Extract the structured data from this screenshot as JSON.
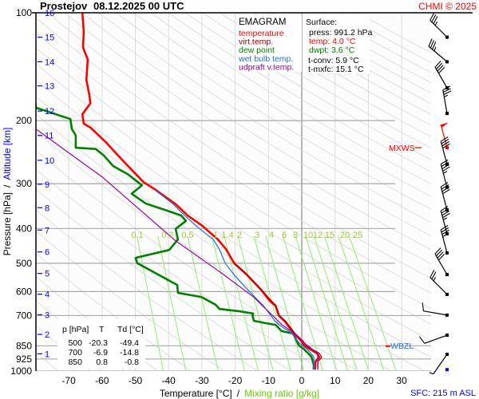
{
  "header": {
    "station": "Prostejov",
    "datetime": "08.12.2025 00 UTC",
    "copyright": "CHMI © 2025"
  },
  "legend": {
    "title": "EMAGRAM",
    "items": [
      {
        "label": "temperature",
        "color": "#ff0000"
      },
      {
        "label": "virt.temp.",
        "color": "#a00000"
      },
      {
        "label": "dew point",
        "color": "#008000"
      },
      {
        "label": "wet bulb temp.",
        "color": "#1e6ee6"
      },
      {
        "label": "udpraft v.temp.",
        "color": "#a000a0"
      }
    ]
  },
  "surface": {
    "title": "Surface:",
    "press": "press: 991.2 hPa",
    "temp": "temp: 4.0 °C",
    "dwpt": "dwpt: 3.6 °C",
    "tconv": "t-conv: 5.9 °C",
    "tmxfc": "t-mxfc: 15.1 °C"
  },
  "table": {
    "headers": [
      "p [hPa]",
      "T",
      "Td [°C]"
    ],
    "rows": [
      [
        "500",
        "-20.3",
        "-49.4"
      ],
      [
        "700",
        "-6.9",
        "-14.8"
      ],
      [
        "850",
        "0.8",
        "-0.8"
      ]
    ]
  },
  "markers": {
    "mxws": {
      "label": "MXWS",
      "pressure": 238
    },
    "wbzl": {
      "label": "WBZL",
      "pressure": 852
    }
  },
  "footer": {
    "sfc": "SFC: 215 m ASL"
  },
  "chart_data": {
    "type": "line",
    "title": "EMAGRAM",
    "xlabel": "Temperature [°C]",
    "xlabel_sep": "/",
    "xlabel2": "Mixing ratio [g/kg]",
    "ylabel": "Pressure [hPa]",
    "ylabel_sep": "/",
    "ylabel2": "Altitude [km]",
    "xlim": [
      -80,
      40
    ],
    "ylim": [
      1000,
      100
    ],
    "yscale": "log",
    "x_ticks": [
      "-70",
      "-60",
      "-50",
      "-40",
      "-30",
      "-20",
      "-10",
      "0",
      "10",
      "20",
      "30"
    ],
    "pressure_ticks": [
      "100",
      "200",
      "300",
      "400",
      "500",
      "600",
      "700",
      "850",
      "925",
      "1000"
    ],
    "altitude_ticks": [
      {
        "km": "16",
        "p": 100
      },
      {
        "km": "15",
        "p": 117
      },
      {
        "km": "14",
        "p": 137
      },
      {
        "km": "13",
        "p": 160
      },
      {
        "km": "12",
        "p": 188
      },
      {
        "km": "11",
        "p": 220
      },
      {
        "km": "10",
        "p": 258
      },
      {
        "km": "9",
        "p": 301
      },
      {
        "km": "8",
        "p": 350
      },
      {
        "km": "7",
        "p": 404
      },
      {
        "km": "6",
        "p": 465
      },
      {
        "km": "5",
        "p": 534
      },
      {
        "km": "4",
        "p": 610
      },
      {
        "km": "3",
        "p": 696
      },
      {
        "km": "2",
        "p": 790
      },
      {
        "km": "1",
        "p": 895
      }
    ],
    "mixing_ratio_labels": [
      "0.1",
      "0.2",
      "0.5",
      "1",
      "1.4",
      "2",
      "3",
      "4",
      "6",
      "8",
      "10",
      "12",
      "15",
      "20",
      "25"
    ],
    "grid": true,
    "series": [
      {
        "name": "temperature",
        "color": "#ff0000",
        "points": [
          [
            100,
            -65.9
          ],
          [
            113,
            -65.5
          ],
          [
            125,
            -65.7
          ],
          [
            135,
            -64.3
          ],
          [
            154,
            -64.7
          ],
          [
            170,
            -63.8
          ],
          [
            179,
            -63.5
          ],
          [
            192,
            -65.9
          ],
          [
            204,
            -65.5
          ],
          [
            209,
            -63.5
          ],
          [
            230,
            -58.8
          ],
          [
            257,
            -54.0
          ],
          [
            297,
            -47.5
          ],
          [
            312,
            -43.9
          ],
          [
            342,
            -37.9
          ],
          [
            368,
            -34.3
          ],
          [
            391,
            -30.2
          ],
          [
            429,
            -25.2
          ],
          [
            456,
            -22.8
          ],
          [
            500,
            -20.3
          ],
          [
            535,
            -16.8
          ],
          [
            593,
            -12.2
          ],
          [
            637,
            -9.6
          ],
          [
            657,
            -7.9
          ],
          [
            700,
            -6.9
          ],
          [
            728,
            -5.0
          ],
          [
            786,
            -2.4
          ],
          [
            823,
            -0.2
          ],
          [
            850,
            0.8
          ],
          [
            893,
            4.6
          ],
          [
            916,
            5.3
          ],
          [
            940,
            4.1
          ],
          [
            991,
            4.0
          ]
        ]
      },
      {
        "name": "virt.temp.",
        "color": "#a00000",
        "points": [
          [
            500,
            -20.3
          ],
          [
            535,
            -16.7
          ],
          [
            593,
            -12.1
          ],
          [
            657,
            -7.8
          ],
          [
            700,
            -6.7
          ],
          [
            728,
            -4.7
          ],
          [
            786,
            -2.0
          ],
          [
            823,
            0.3
          ],
          [
            850,
            1.4
          ],
          [
            893,
            5.3
          ],
          [
            916,
            6.0
          ],
          [
            940,
            4.9
          ],
          [
            991,
            4.8
          ]
        ]
      },
      {
        "name": "dew point",
        "color": "#008000",
        "points": [
          [
            179,
            -79.9
          ],
          [
            184,
            -79.9
          ],
          [
            198,
            -69.5
          ],
          [
            211,
            -69.1
          ],
          [
            220,
            -67.9
          ],
          [
            238,
            -67.9
          ],
          [
            240,
            -61.9
          ],
          [
            250,
            -59.5
          ],
          [
            268,
            -56.6
          ],
          [
            282,
            -52.3
          ],
          [
            303,
            -48.0
          ],
          [
            320,
            -51.1
          ],
          [
            341,
            -46.8
          ],
          [
            355,
            -41.0
          ],
          [
            368,
            -36.2
          ],
          [
            381,
            -34.8
          ],
          [
            401,
            -37.9
          ],
          [
            429,
            -37.2
          ],
          [
            459,
            -39.8
          ],
          [
            483,
            -49.9
          ],
          [
            500,
            -49.4
          ],
          [
            575,
            -37.4
          ],
          [
            605,
            -37.2
          ],
          [
            621,
            -30.2
          ],
          [
            653,
            -25.9
          ],
          [
            671,
            -24.7
          ],
          [
            681,
            -18.7
          ],
          [
            691,
            -14.6
          ],
          [
            700,
            -14.8
          ],
          [
            724,
            -14.4
          ],
          [
            735,
            -10.8
          ],
          [
            743,
            -7.9
          ],
          [
            774,
            -6.0
          ],
          [
            786,
            -2.6
          ],
          [
            836,
            -1.2
          ],
          [
            850,
            -0.8
          ],
          [
            866,
            0.5
          ],
          [
            912,
            2.9
          ],
          [
            960,
            3.6
          ],
          [
            991,
            3.6
          ]
        ]
      },
      {
        "name": "wet bulb temp.",
        "color": "#1e6ee6",
        "points": [
          [
            312,
            -44.2
          ],
          [
            342,
            -38.6
          ],
          [
            368,
            -35.2
          ],
          [
            400,
            -30.8
          ],
          [
            429,
            -26.6
          ],
          [
            458,
            -24.7
          ],
          [
            500,
            -23.0
          ],
          [
            535,
            -20.6
          ],
          [
            583,
            -17.0
          ],
          [
            615,
            -14.6
          ],
          [
            657,
            -11.5
          ],
          [
            728,
            -7.9
          ],
          [
            752,
            -6.0
          ],
          [
            783,
            -3.1
          ],
          [
            836,
            -0.7
          ],
          [
            870,
            1.7
          ],
          [
            912,
            3.6
          ],
          [
            960,
            3.6
          ],
          [
            991,
            3.8
          ]
        ]
      },
      {
        "name": "udpraft v.temp.",
        "color": "#a000a0",
        "points": [
          [
            212,
            -79.6
          ],
          [
            287,
            -60.0
          ],
          [
            433,
            -37.9
          ],
          [
            532,
            -24.2
          ],
          [
            620,
            -14.6
          ],
          [
            688,
            -9.6
          ],
          [
            742,
            -6.0
          ],
          [
            786,
            -2.2
          ],
          [
            844,
            1.4
          ],
          [
            893,
            4.8
          ],
          [
            991,
            4.8
          ]
        ]
      }
    ],
    "wind_barbs": [
      {
        "p": 117,
        "dir": 315,
        "kt": 35
      },
      {
        "p": 137,
        "dir": 310,
        "kt": 35
      },
      {
        "p": 162,
        "dir": 330,
        "kt": 40
      },
      {
        "p": 191,
        "dir": 350,
        "kt": 35
      },
      {
        "p": 238,
        "dir": 345,
        "kt": 50,
        "color": "#ff0000"
      },
      {
        "p": 265,
        "dir": 345,
        "kt": 40
      },
      {
        "p": 307,
        "dir": 345,
        "kt": 45
      },
      {
        "p": 355,
        "dir": 345,
        "kt": 40
      },
      {
        "p": 414,
        "dir": 345,
        "kt": 45
      },
      {
        "p": 468,
        "dir": 345,
        "kt": 35
      },
      {
        "p": 538,
        "dir": 330,
        "kt": 40
      },
      {
        "p": 611,
        "dir": 315,
        "kt": 25
      },
      {
        "p": 698,
        "dir": 280,
        "kt": 10
      },
      {
        "p": 794,
        "dir": 250,
        "kt": 10
      },
      {
        "p": 898,
        "dir": 215,
        "kt": 5
      },
      {
        "p": 991,
        "dir": 0,
        "kt": 0
      }
    ]
  }
}
